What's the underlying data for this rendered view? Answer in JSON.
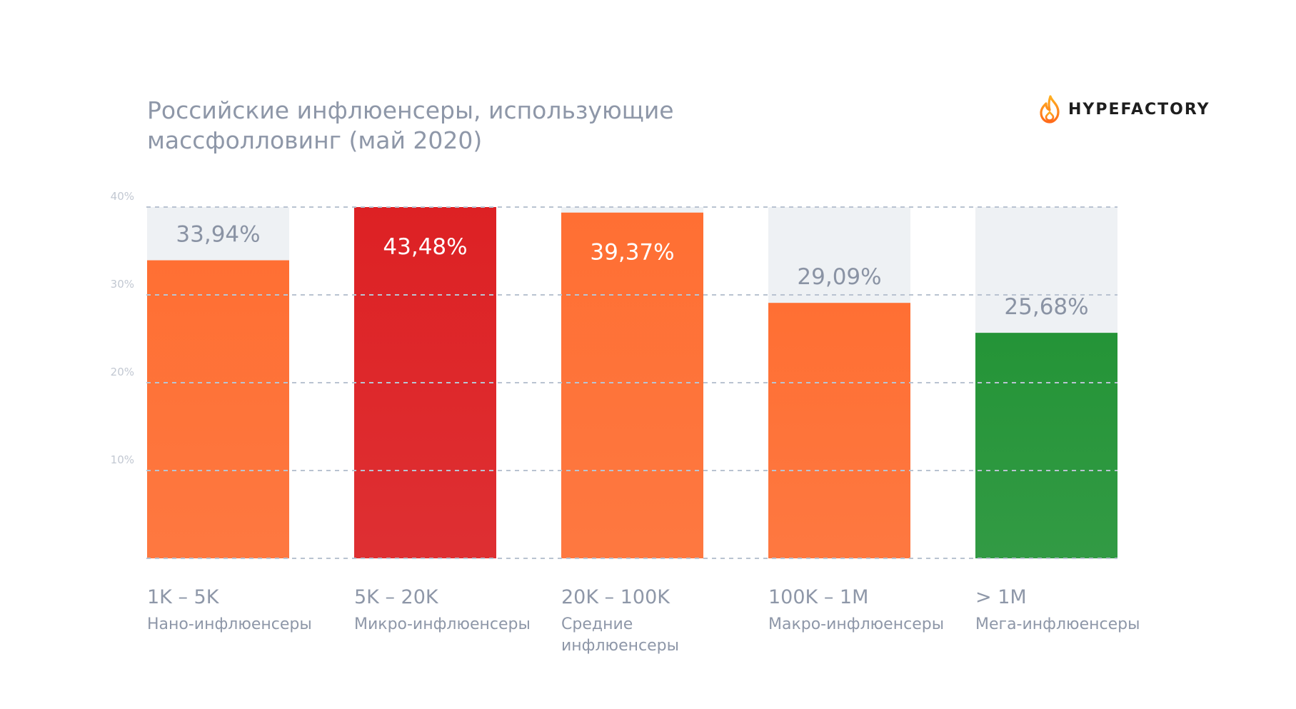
{
  "title_lines": [
    "Российские инфлюенсеры, использующие",
    "массфолловинг (май 2020)"
  ],
  "logo": {
    "icon": "flame-icon",
    "text": "HYPEFACTORY",
    "flame_colors": [
      "#ff6a1a",
      "#ffb020"
    ]
  },
  "chart_data": {
    "type": "bar",
    "title": "Российские инфлюенсеры, использующие массфолловинг (май 2020)",
    "ylim": [
      0,
      40
    ],
    "yticks": [
      {
        "value": 10,
        "label": "10%"
      },
      {
        "value": 20,
        "label": "20%"
      },
      {
        "value": 30,
        "label": "30%"
      },
      {
        "value": 40,
        "label": "40%"
      }
    ],
    "grid": true,
    "grid_style": "dashed",
    "categories": [
      {
        "range": "1K – 5K",
        "name": [
          "Нано-инфлюенсеры"
        ],
        "value": 33.94,
        "label": "33,94%",
        "color": "#ff6f33",
        "label_on_bar": false
      },
      {
        "range": "5K – 20K",
        "name": [
          "Микро-инфлюенсеры"
        ],
        "value": 43.48,
        "label": "43,48%",
        "color": "#dd2124",
        "label_on_bar": true
      },
      {
        "range": "20K – 100K",
        "name": [
          "Средние",
          "инфлюенсеры"
        ],
        "value": 39.37,
        "label": "39,37%",
        "color": "#ff6f33",
        "label_on_bar": true
      },
      {
        "range": "100K – 1M",
        "name": [
          "Макро-инфлюенсеры"
        ],
        "value": 29.09,
        "label": "29,09%",
        "color": "#ff6f33",
        "label_on_bar": false
      },
      {
        "range": "> 1M",
        "name": [
          "Мега-инфлюенсеры"
        ],
        "value": 25.68,
        "label": "25,68%",
        "color": "#249437",
        "label_on_bar": false
      }
    ],
    "background_color": "#eef1f4",
    "grid_color": "#b9c3d1"
  }
}
